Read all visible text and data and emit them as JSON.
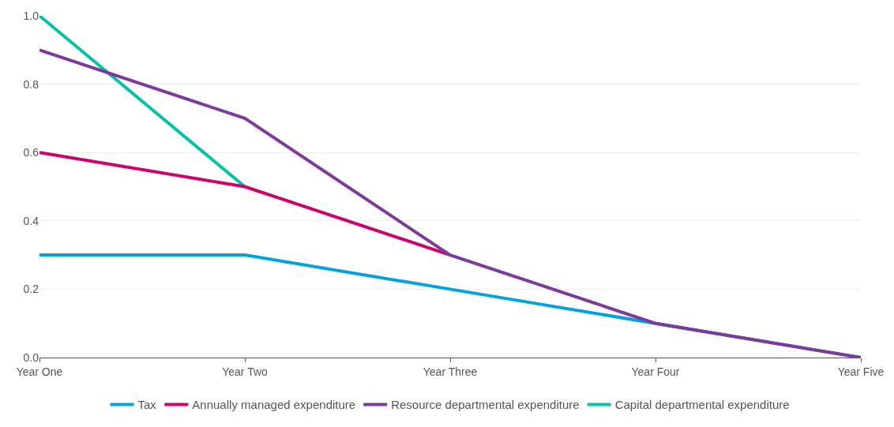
{
  "chart_data": {
    "type": "line",
    "categories": [
      "Year One",
      "Year Two",
      "Year Three",
      "Year Four",
      "Year Five"
    ],
    "series": [
      {
        "name": "Tax",
        "color": "#00a3e0",
        "values": [
          0.3,
          0.3,
          0.2,
          0.1,
          0
        ]
      },
      {
        "name": "Annually managed expenditure",
        "color": "#d0006f",
        "values": [
          0.6,
          0.5,
          0.3,
          null,
          null
        ]
      },
      {
        "name": "Resource departmental expenditure",
        "color": "#7d3a9c",
        "values": [
          0.9,
          0.7,
          0.3,
          0.1,
          0
        ]
      },
      {
        "name": "Capital departmental expenditure",
        "color": "#00c4a7",
        "values": [
          1.0,
          0.5,
          null,
          null,
          null
        ]
      }
    ],
    "ylim": [
      0,
      1.0
    ],
    "yticks": [
      {
        "value": 0,
        "label": "0.0"
      },
      0.2,
      0.4,
      0.6,
      0.8,
      {
        "value": 1,
        "label": "1.0"
      }
    ],
    "grid": "y",
    "legend": "bottom",
    "marker": "none",
    "line_style": "solid"
  }
}
